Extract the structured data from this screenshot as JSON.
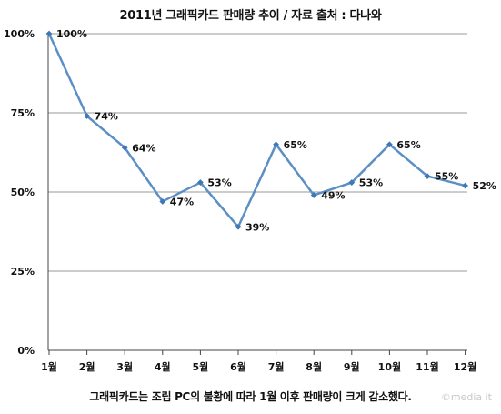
{
  "chart_data": {
    "type": "line",
    "title": "2011년 그래픽카드 판매량 추이 / 자료 출처 : 다나와",
    "categories": [
      "1월",
      "2월",
      "3월",
      "4월",
      "5월",
      "6월",
      "7월",
      "8월",
      "9월",
      "10월",
      "11월",
      "12월"
    ],
    "series": [
      {
        "values": [
          100,
          74,
          64,
          47,
          53,
          39,
          65,
          49,
          53,
          65,
          55,
          52
        ]
      }
    ],
    "data_labels": [
      "100%",
      "74%",
      "64%",
      "47%",
      "53%",
      "39%",
      "65%",
      "49%",
      "53%",
      "65%",
      "55%",
      "52%"
    ],
    "yticks": [
      0,
      25,
      50,
      75,
      100
    ],
    "ytick_labels": [
      "0%",
      "25%",
      "50%",
      "75%",
      "100%"
    ],
    "ylim": [
      0,
      100
    ],
    "grid": true,
    "caption": "그래픽카드는 조립 PC의 불황에 따라 1월 이후 판매량이 크게 감소했다.",
    "colors": {
      "line": "#5b8fc5",
      "marker": "#3f78b5",
      "grid": "#9a9a9a"
    }
  },
  "watermark": "©media it"
}
